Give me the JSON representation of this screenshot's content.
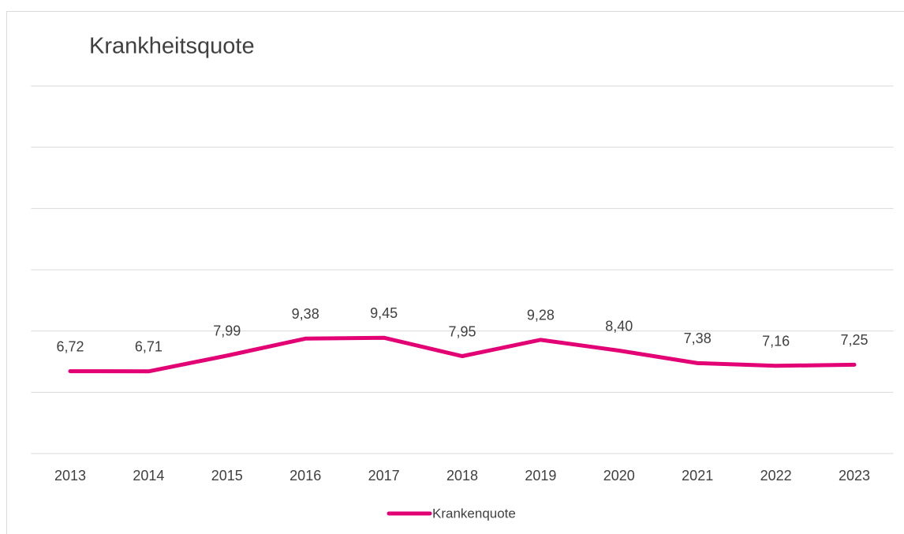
{
  "chart_data": {
    "type": "line",
    "title": "Krankheitsquote",
    "categories": [
      "2013",
      "2014",
      "2015",
      "2016",
      "2017",
      "2018",
      "2019",
      "2020",
      "2021",
      "2022",
      "2023"
    ],
    "series": [
      {
        "name": "Krankenquote",
        "color": "#e20074",
        "values": [
          6.72,
          6.71,
          7.99,
          9.38,
          9.45,
          7.95,
          9.28,
          8.4,
          7.38,
          7.16,
          7.25
        ],
        "value_labels": [
          "6,72",
          "6,71",
          "7,99",
          "9,38",
          "9,45",
          "7,95",
          "9,28",
          "8,40",
          "7,38",
          "7,16",
          "7,25"
        ]
      }
    ],
    "ylim": [
      0,
      30
    ],
    "yticks": [
      0,
      5,
      10,
      15,
      20,
      25,
      30
    ],
    "grid": true,
    "legend": "bottom"
  }
}
